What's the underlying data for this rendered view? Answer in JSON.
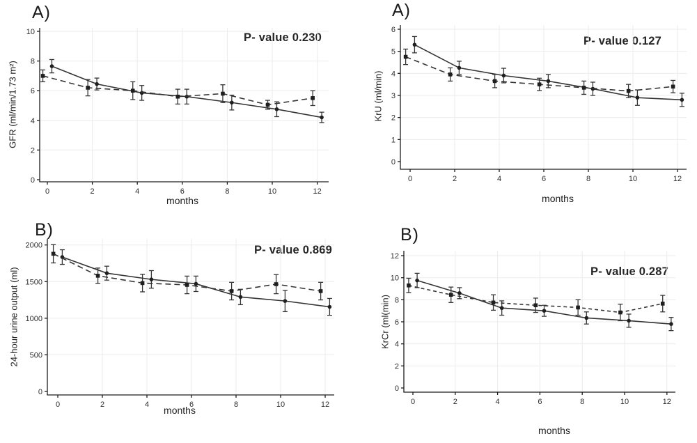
{
  "colors": {
    "line": "#343434",
    "marker": "#1f1f1f",
    "grid": "#ebebeb",
    "text": "#2e2e2e",
    "axis": "#1c1c1c"
  },
  "chart_data": [
    {
      "type": "line",
      "panel_label": "A)",
      "p_value_label": "P- value 0.230",
      "xlabel": "months",
      "ylabel": "GFR (ml/min/1.73 m²)",
      "xlim": [
        -0.4,
        12.5
      ],
      "ylim": [
        0,
        10
      ],
      "x_ticks": [
        0,
        2,
        4,
        6,
        8,
        10,
        12
      ],
      "y_ticks": [
        0,
        2,
        4,
        6,
        8,
        10
      ],
      "grid": true,
      "legend": "none",
      "series": [
        {
          "name": "solid-circles",
          "line_style": "solid",
          "marker": "circle",
          "x": [
            0.2,
            2.2,
            4.2,
            6.2,
            8.2,
            10.2,
            12.2
          ],
          "y": [
            7.65,
            6.45,
            5.85,
            5.6,
            5.2,
            4.75,
            4.2
          ],
          "err": [
            0.45,
            0.4,
            0.5,
            0.5,
            0.5,
            0.5,
            0.35
          ]
        },
        {
          "name": "dashed-squares",
          "line_style": "dashed",
          "marker": "square",
          "x": [
            -0.2,
            1.8,
            3.8,
            5.8,
            7.8,
            9.8,
            11.8
          ],
          "y": [
            7.0,
            6.2,
            6.0,
            5.6,
            5.8,
            5.05,
            5.5
          ],
          "err": [
            0.4,
            0.55,
            0.6,
            0.5,
            0.6,
            0.3,
            0.5
          ]
        }
      ]
    },
    {
      "type": "line",
      "panel_label": "A)",
      "p_value_label": "P- value 0.127",
      "xlabel": "months",
      "ylabel": "KrU (ml/min)",
      "xlim": [
        -0.45,
        12.6
      ],
      "ylim": [
        0,
        6
      ],
      "x_ticks": [
        0,
        2,
        4,
        6,
        8,
        10,
        12
      ],
      "y_ticks": [
        0,
        1,
        2,
        3,
        4,
        5,
        6
      ],
      "grid": true,
      "legend": "none",
      "series": [
        {
          "name": "solid-circles",
          "line_style": "solid",
          "marker": "circle",
          "x": [
            0.2,
            2.2,
            4.2,
            6.2,
            8.2,
            10.2,
            12.2
          ],
          "y": [
            5.3,
            4.25,
            3.9,
            3.65,
            3.3,
            2.9,
            2.8
          ],
          "err": [
            0.37,
            0.3,
            0.33,
            0.3,
            0.3,
            0.35,
            0.3
          ]
        },
        {
          "name": "dashed-squares",
          "line_style": "dashed",
          "marker": "square",
          "x": [
            -0.2,
            1.8,
            3.8,
            5.8,
            7.8,
            9.8,
            11.8
          ],
          "y": [
            4.75,
            3.95,
            3.65,
            3.5,
            3.35,
            3.2,
            3.4
          ],
          "err": [
            0.35,
            0.3,
            0.3,
            0.28,
            0.3,
            0.3,
            0.28
          ]
        }
      ]
    },
    {
      "type": "line",
      "panel_label": "B)",
      "p_value_label": "P- value 0.869",
      "xlabel": "months",
      "ylabel": "24-hour urine output (ml)",
      "xlim": [
        -0.5,
        12.6
      ],
      "ylim": [
        0,
        2000
      ],
      "x_ticks": [
        0,
        2,
        4,
        6,
        8,
        10,
        12
      ],
      "y_ticks": [
        0,
        500,
        1000,
        1500,
        2000
      ],
      "grid": true,
      "legend": "none",
      "series": [
        {
          "name": "solid-circles",
          "line_style": "solid",
          "marker": "circle",
          "x": [
            0.2,
            2.2,
            4.2,
            6.2,
            8.2,
            10.2,
            12.2
          ],
          "y": [
            1835,
            1615,
            1530,
            1470,
            1290,
            1235,
            1155
          ],
          "err": [
            100,
            95,
            120,
            105,
            105,
            145,
            115
          ]
        },
        {
          "name": "dashed-squares",
          "line_style": "dashed",
          "marker": "square",
          "x": [
            -0.2,
            1.8,
            3.8,
            5.8,
            7.8,
            9.8,
            11.8
          ],
          "y": [
            1880,
            1580,
            1480,
            1455,
            1370,
            1465,
            1370
          ],
          "err": [
            125,
            105,
            120,
            120,
            120,
            130,
            120
          ]
        }
      ]
    },
    {
      "type": "line",
      "panel_label": "B)",
      "p_value_label": "P- value 0.287",
      "xlabel": "months",
      "ylabel": "KrCr (ml(min)",
      "xlim": [
        -0.45,
        12.6
      ],
      "ylim": [
        0,
        12
      ],
      "x_ticks": [
        0,
        2,
        4,
        6,
        8,
        10,
        12
      ],
      "y_ticks": [
        0,
        2,
        4,
        6,
        8,
        10,
        12
      ],
      "grid": true,
      "legend": "none",
      "series": [
        {
          "name": "solid-circles",
          "line_style": "solid",
          "marker": "circle",
          "x": [
            0.2,
            2.2,
            4.2,
            6.2,
            8.2,
            10.2,
            12.2
          ],
          "y": [
            9.75,
            8.6,
            7.25,
            7.0,
            6.35,
            6.1,
            5.8
          ],
          "err": [
            0.65,
            0.5,
            0.65,
            0.5,
            0.55,
            0.6,
            0.6
          ]
        },
        {
          "name": "dashed-squares",
          "line_style": "dashed",
          "marker": "square",
          "x": [
            -0.2,
            1.8,
            3.8,
            5.8,
            7.8,
            9.8,
            11.8
          ],
          "y": [
            9.3,
            8.45,
            7.75,
            7.5,
            7.3,
            6.85,
            7.65
          ],
          "err": [
            0.65,
            0.7,
            0.7,
            0.65,
            0.7,
            0.75,
            0.75
          ]
        }
      ]
    }
  ]
}
